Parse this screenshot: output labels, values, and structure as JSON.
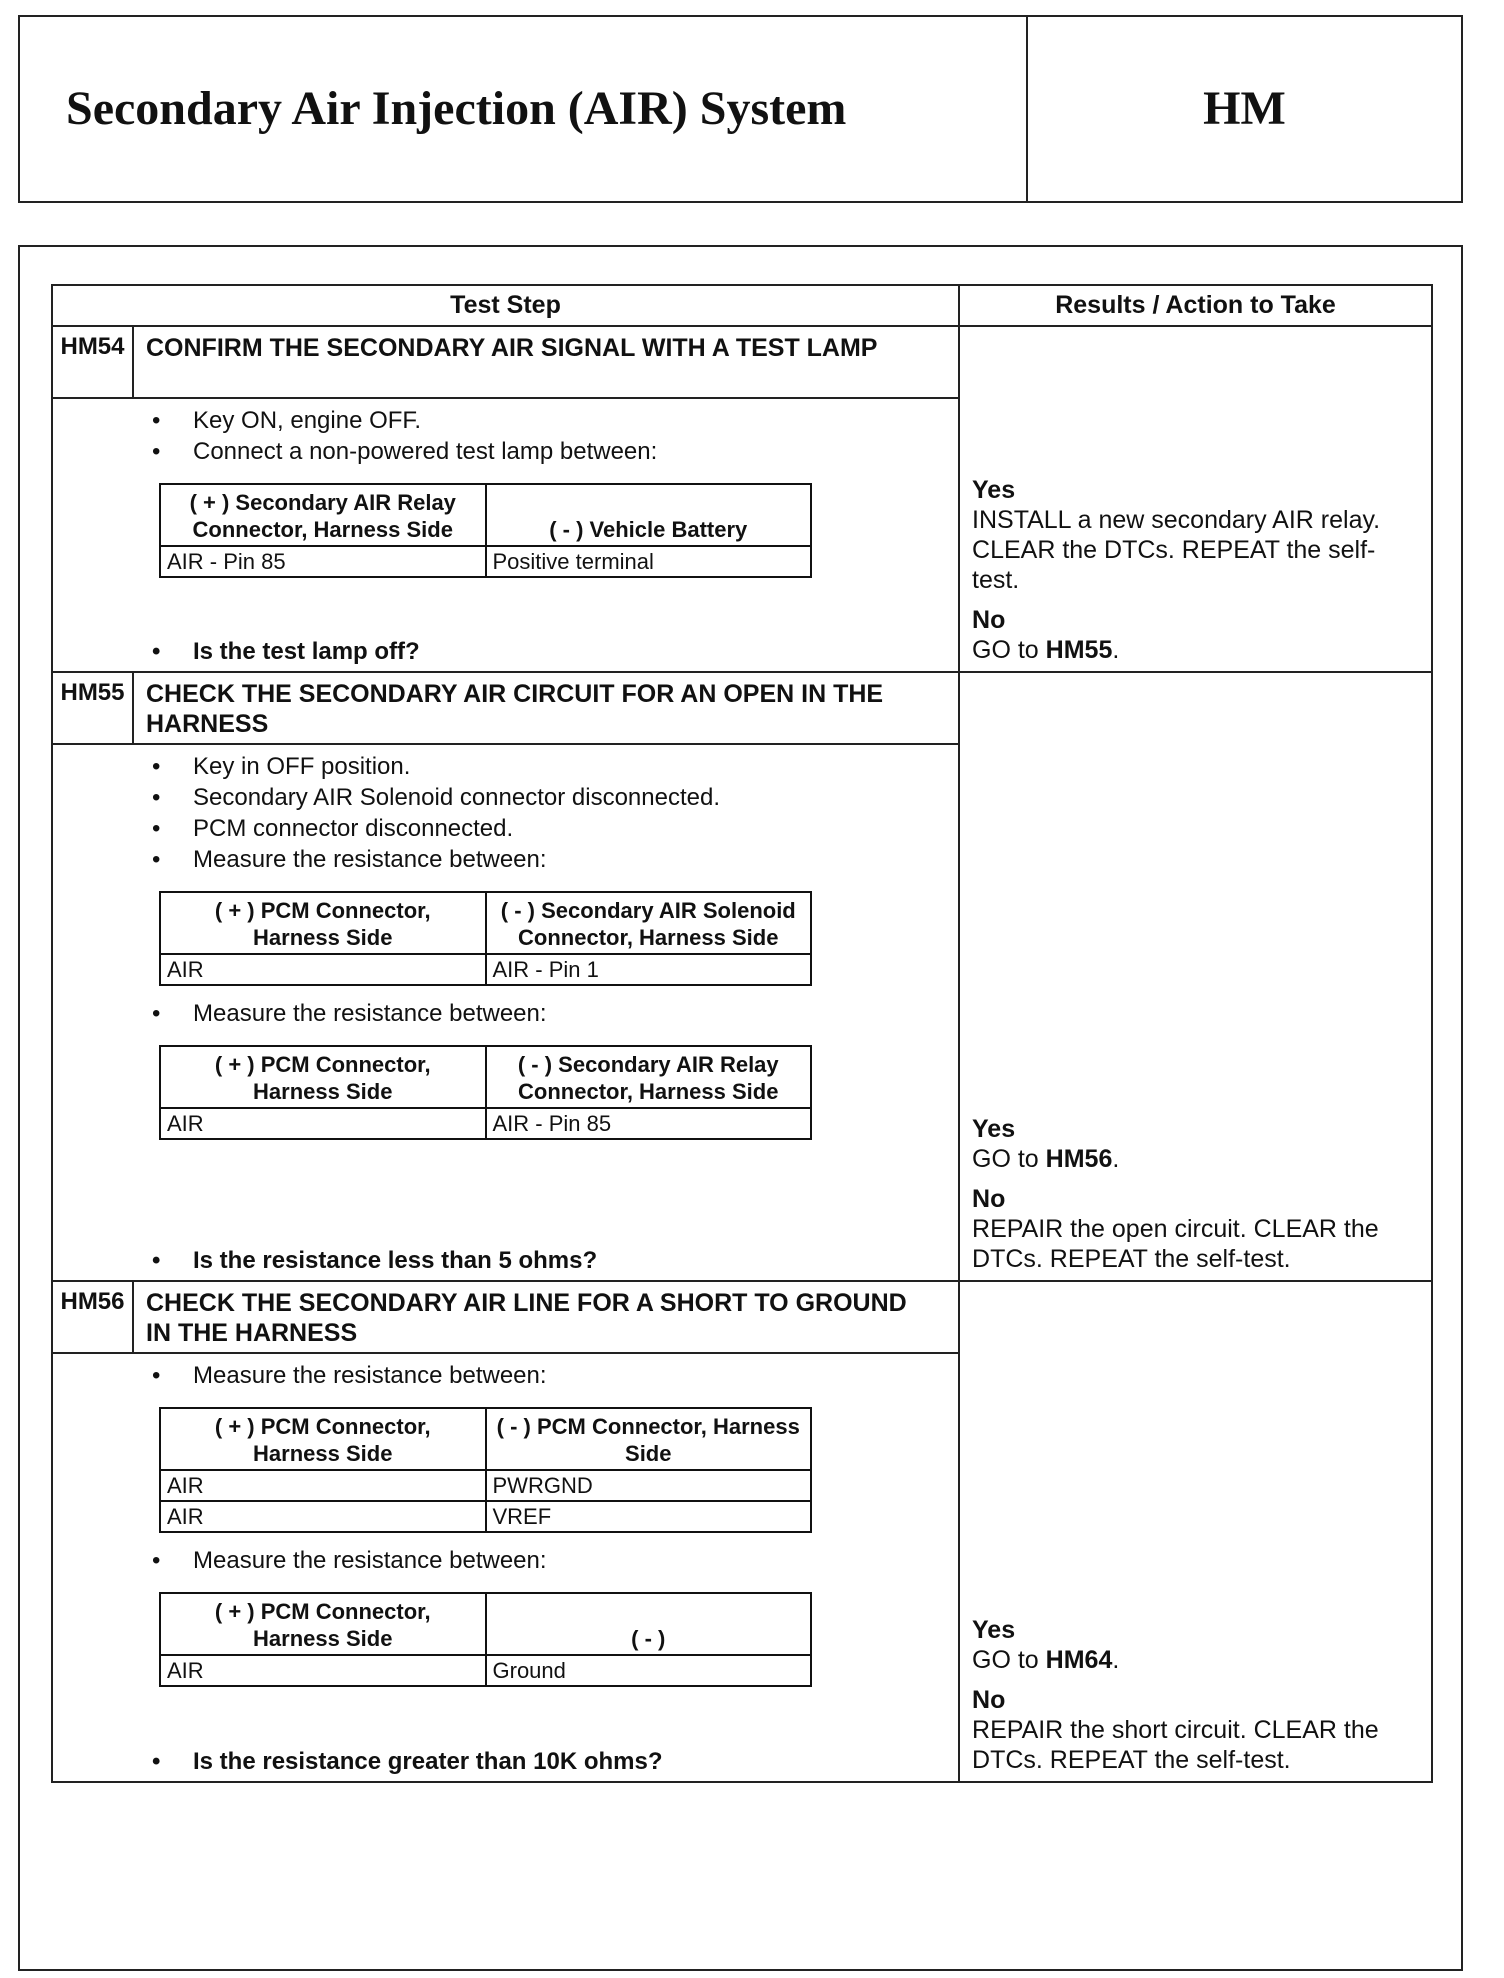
{
  "header": {
    "title": "Secondary Air Injection (AIR) System",
    "code": "HM"
  },
  "table": {
    "headers": [
      "Test Step",
      "Results / Action to Take"
    ],
    "steps": [
      {
        "id": "HM54",
        "heading": "CONFIRM THE SECONDARY AIR SIGNAL WITH A TEST LAMP",
        "body": [
          {
            "bullets": [
              "Key ON, engine OFF.",
              "Connect a non-powered test lamp between:"
            ]
          },
          {
            "table": {
              "header": [
                "( + ) Secondary AIR Relay Connector, Harness Side",
                "( - ) Vehicle Battery"
              ],
              "rows": [
                [
                  "AIR - Pin 85",
                  "Positive terminal"
                ]
              ]
            }
          },
          {
            "question": "Is the test lamp off?"
          }
        ],
        "results": [
          {
            "label": "Yes",
            "text": "INSTALL a new secondary AIR relay. CLEAR the DTCs. REPEAT the self-test."
          },
          {
            "label": "No",
            "text": "GO to",
            "ref": "HM55",
            "punct": "."
          }
        ]
      },
      {
        "id": "HM55",
        "heading": "CHECK THE SECONDARY AIR CIRCUIT FOR AN OPEN IN THE HARNESS",
        "body": [
          {
            "bullets": [
              "Key in OFF position.",
              "Secondary AIR Solenoid connector disconnected.",
              "PCM connector disconnected.",
              "Measure the resistance between:"
            ]
          },
          {
            "table": {
              "header": [
                "( + ) PCM Connector, Harness Side",
                "( - ) Secondary AIR Solenoid Connector, Harness Side"
              ],
              "rows": [
                [
                  "AIR",
                  "AIR - Pin 1"
                ]
              ]
            }
          },
          {
            "bullets": [
              "Measure the resistance between:"
            ]
          },
          {
            "table": {
              "header": [
                "( + ) PCM Connector, Harness Side",
                "( - ) Secondary AIR Relay Connector, Harness Side"
              ],
              "rows": [
                [
                  "AIR",
                  "AIR - Pin 85"
                ]
              ]
            }
          },
          {
            "question": "Is the resistance less than 5 ohms?"
          }
        ],
        "results": [
          {
            "label": "Yes",
            "text": "GO to",
            "ref": "HM56",
            "punct": "."
          },
          {
            "label": "No",
            "text": "REPAIR the open circuit. CLEAR the DTCs. REPEAT the self-test."
          }
        ]
      },
      {
        "id": "HM56",
        "heading": "CHECK THE SECONDARY AIR LINE FOR A SHORT TO GROUND IN THE HARNESS",
        "body": [
          {
            "bullets": [
              "Measure the resistance between:"
            ]
          },
          {
            "table": {
              "header": [
                "( + ) PCM Connector, Harness Side",
                "( - ) PCM Connector, Harness Side"
              ],
              "rows": [
                [
                  "AIR",
                  "PWRGND"
                ],
                [
                  "AIR",
                  "VREF"
                ]
              ]
            }
          },
          {
            "bullets": [
              "Measure the resistance between:"
            ]
          },
          {
            "table": {
              "header": [
                "( + ) PCM Connector, Harness Side",
                "( - )"
              ],
              "rows": [
                [
                  "AIR",
                  "Ground"
                ]
              ]
            }
          },
          {
            "question": "Is the resistance greater than 10K ohms?"
          }
        ],
        "results": [
          {
            "label": "Yes",
            "text": "GO to",
            "ref": "HM64",
            "punct": "."
          },
          {
            "label": "No",
            "text": "REPAIR the short circuit. CLEAR the DTCs. REPEAT the self-test."
          }
        ]
      }
    ]
  }
}
